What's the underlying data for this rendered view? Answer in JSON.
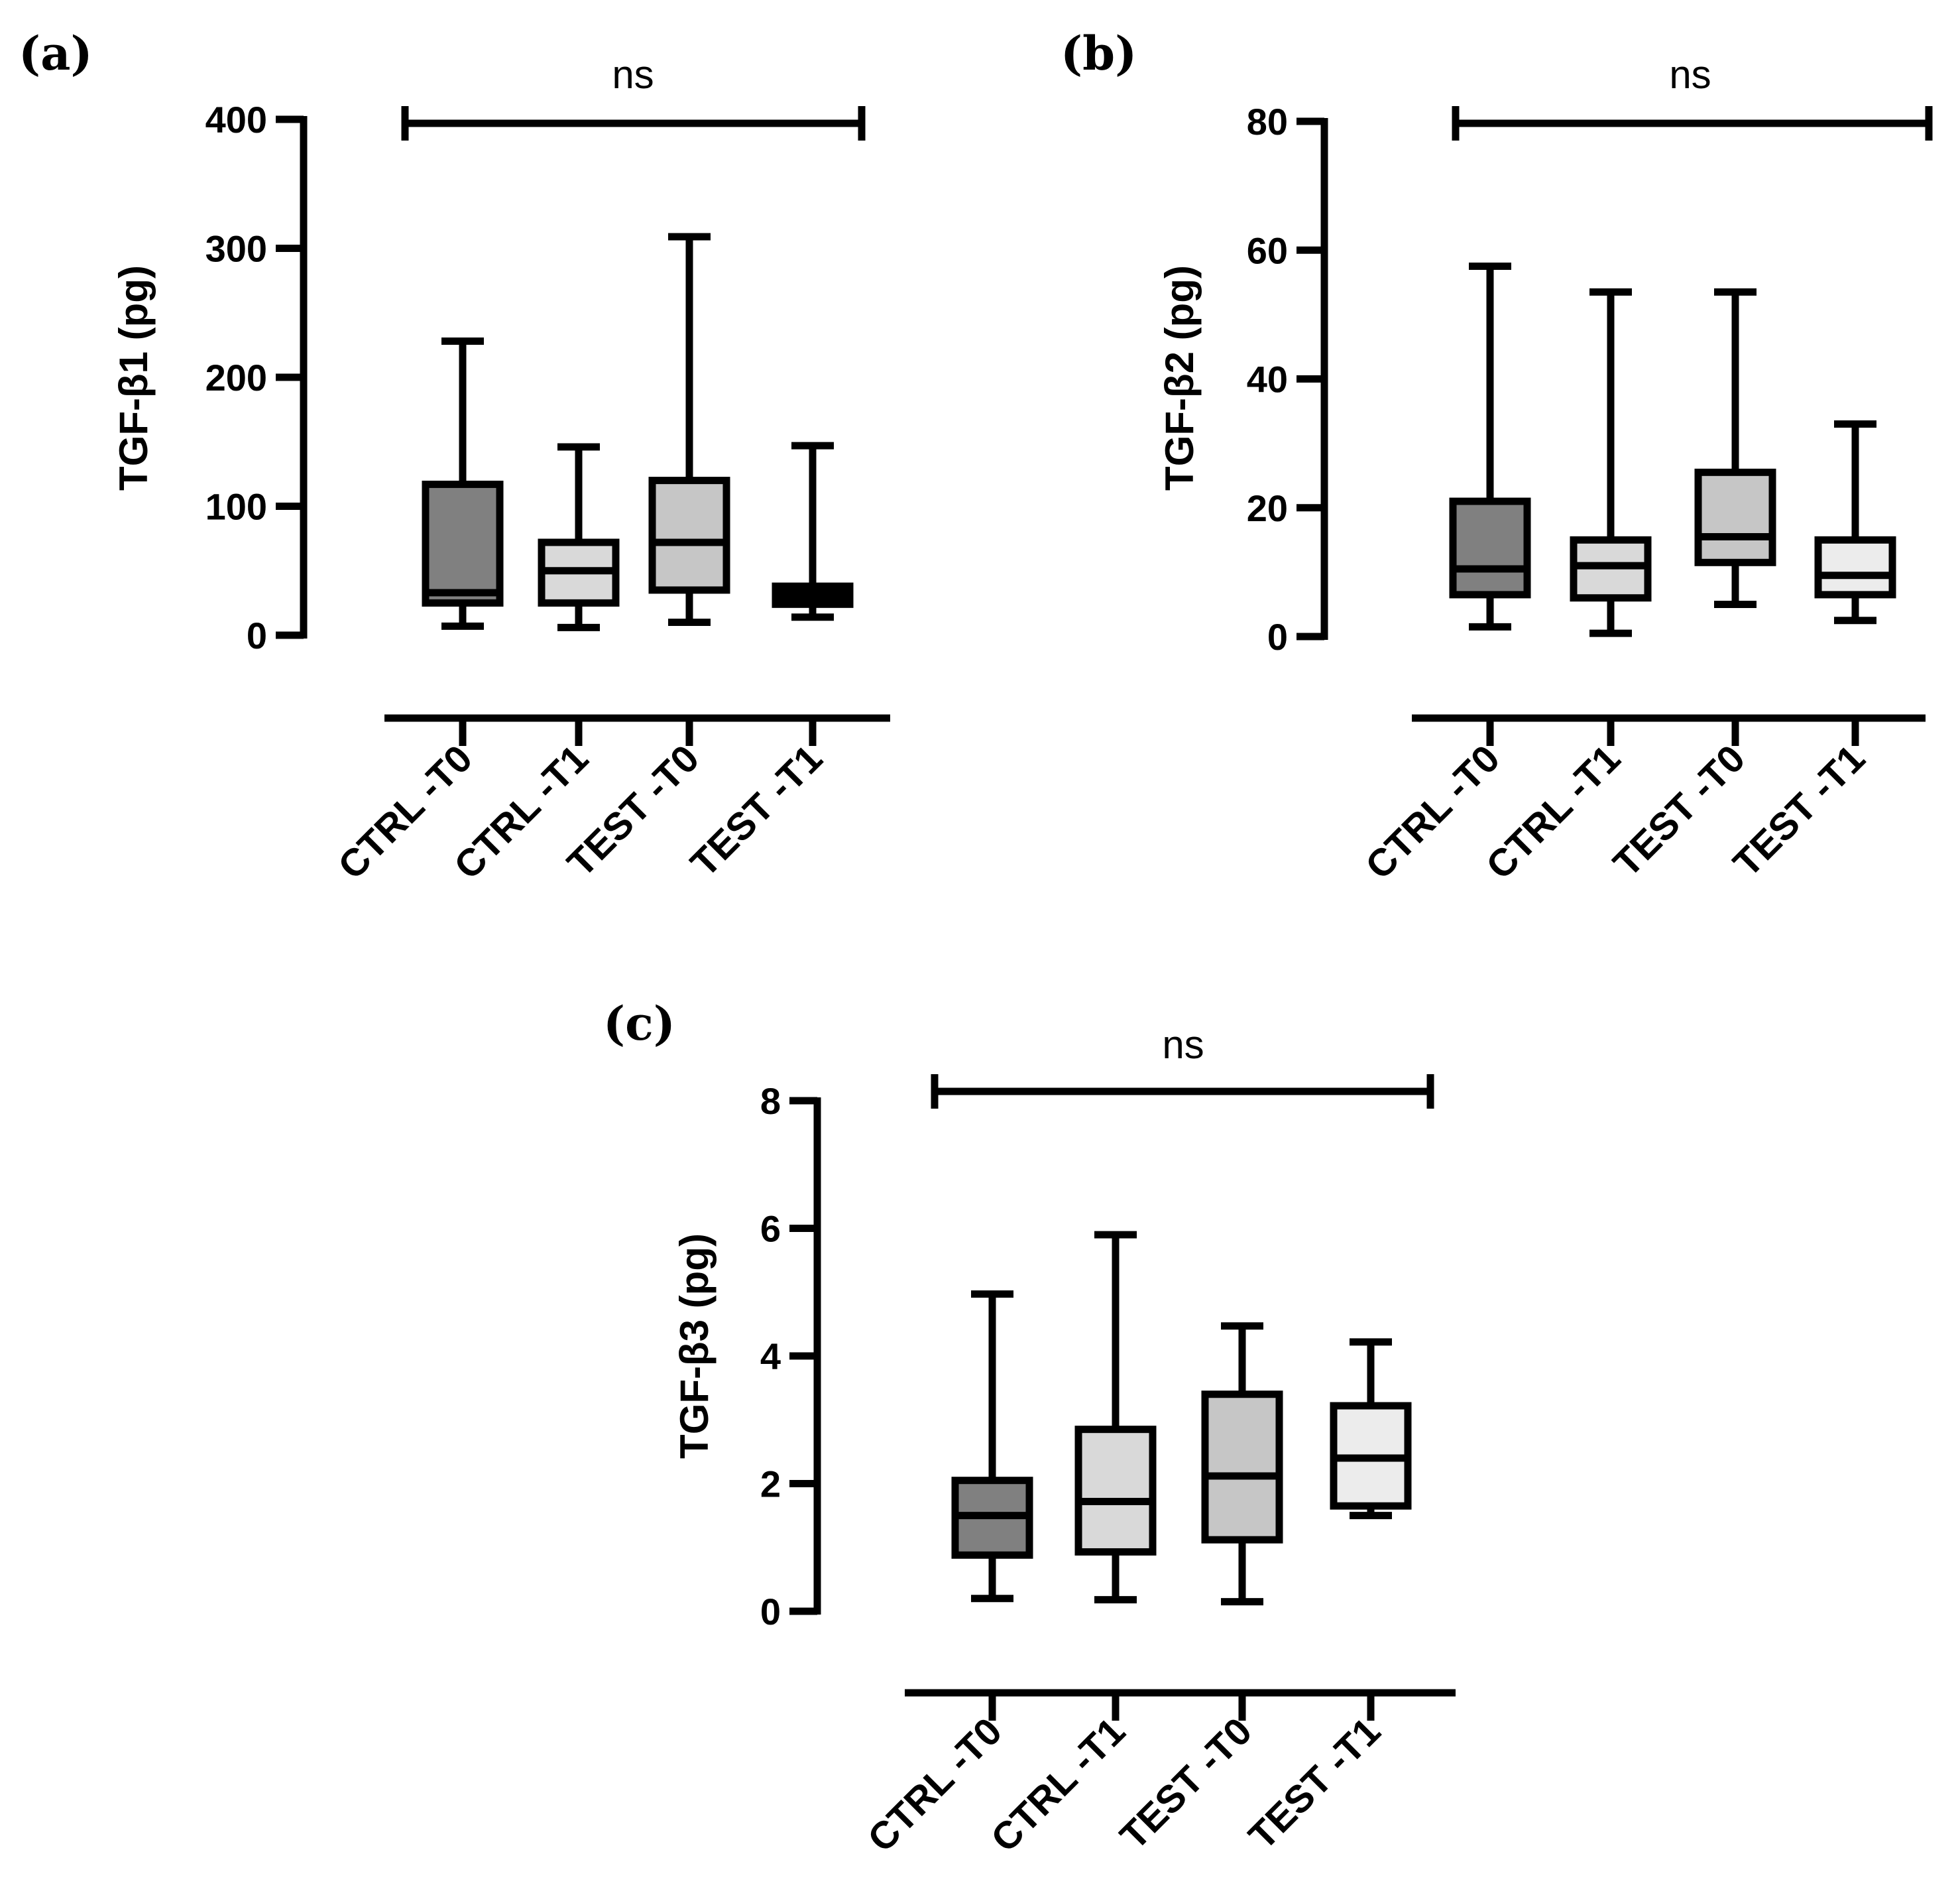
{
  "chart_data": [
    {
      "panel": "(a)",
      "type": "box",
      "ylabel": "TGF-β1 (pg)",
      "ylim": [
        0,
        400
      ],
      "yticks": [
        "0",
        "100",
        "200",
        "300",
        "400"
      ],
      "categories": [
        "CTRL -T0",
        "CTRL -T1",
        "TEST -T0",
        "TEST -T1"
      ],
      "colors": [
        "#808080",
        "#d9d9d9",
        "#c6c6c6",
        "#ececec"
      ],
      "significance": "ns",
      "boxes": [
        {
          "min": 7,
          "q1": 25,
          "median": 33,
          "q3": 117,
          "max": 228
        },
        {
          "min": 6,
          "q1": 25,
          "median": 50,
          "q3": 72,
          "max": 146
        },
        {
          "min": 10,
          "q1": 35,
          "median": 72,
          "q3": 120,
          "max": 309
        },
        {
          "min": 14,
          "q1": 24,
          "median": 32,
          "q3": 38,
          "max": 147
        }
      ]
    },
    {
      "panel": "(b)",
      "type": "box",
      "ylabel": "TGF-β2 (pg)",
      "ylim": [
        0,
        80
      ],
      "yticks": [
        "0",
        "20",
        "40",
        "60",
        "80"
      ],
      "categories": [
        "CTRL -T0",
        "CTRL -T1",
        "TEST -T0",
        "TEST -T1"
      ],
      "colors": [
        "#808080",
        "#d9d9d9",
        "#c6c6c6",
        "#ececec"
      ],
      "significance": "ns",
      "boxes": [
        {
          "min": 1.5,
          "q1": 6.5,
          "median": 10.5,
          "q3": 21,
          "max": 57.5
        },
        {
          "min": 0.5,
          "q1": 6,
          "median": 11,
          "q3": 15,
          "max": 53.5
        },
        {
          "min": 5,
          "q1": 11.5,
          "median": 15.5,
          "q3": 25.5,
          "max": 53.5
        },
        {
          "min": 2.5,
          "q1": 6.5,
          "median": 9.5,
          "q3": 15,
          "max": 33
        }
      ]
    },
    {
      "panel": "(c)",
      "type": "box",
      "ylabel": "TGF-β3 (pg)",
      "ylim": [
        0,
        8
      ],
      "yticks": [
        "0",
        "2",
        "4",
        "6",
        "8"
      ],
      "categories": [
        "CTRL -T0",
        "CTRL -T1",
        "TEST -T0",
        "TEST -T1"
      ],
      "colors": [
        "#808080",
        "#d9d9d9",
        "#c6c6c6",
        "#ececec"
      ],
      "significance": "ns",
      "boxes": [
        {
          "min": 0.2,
          "q1": 0.88,
          "median": 1.5,
          "q3": 2.05,
          "max": 4.97
        },
        {
          "min": 0.18,
          "q1": 0.93,
          "median": 1.72,
          "q3": 2.85,
          "max": 5.9
        },
        {
          "min": 0.15,
          "q1": 1.12,
          "median": 2.12,
          "q3": 3.4,
          "max": 4.47
        },
        {
          "min": 1.5,
          "q1": 1.65,
          "median": 2.4,
          "q3": 3.22,
          "max": 4.22
        }
      ]
    }
  ]
}
